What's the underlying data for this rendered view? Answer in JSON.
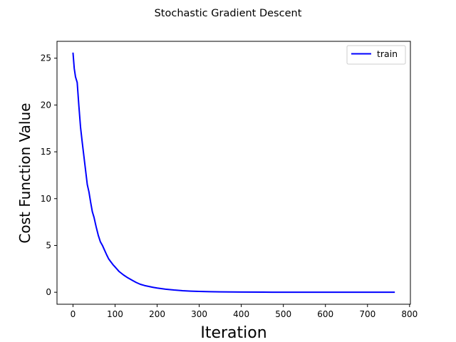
{
  "chart_data": {
    "type": "line",
    "title": "Stochastic Gradient Descent",
    "xlabel": "Iteration",
    "ylabel": "Cost Function Value",
    "xlim": [
      -38,
      802
    ],
    "ylim": [
      -1.28,
      26.8
    ],
    "xticks": [
      0,
      100,
      200,
      300,
      400,
      500,
      600,
      700,
      800
    ],
    "yticks": [
      0,
      5,
      10,
      15,
      20,
      25
    ],
    "grid": false,
    "legend": "top-right",
    "line_color": "#0000ff",
    "series": [
      {
        "name": "train",
        "x": [
          0,
          3,
          6,
          10,
          14,
          18,
          22,
          26,
          30,
          34,
          38,
          42,
          46,
          50,
          55,
          60,
          65,
          70,
          75,
          80,
          85,
          90,
          95,
          100,
          110,
          120,
          130,
          140,
          150,
          160,
          170,
          180,
          190,
          200,
          220,
          240,
          260,
          280,
          300,
          325,
          350,
          375,
          400,
          450,
          500,
          550,
          600,
          650,
          700,
          765
        ],
        "y": [
          25.6,
          23.9,
          23.0,
          22.4,
          19.9,
          17.6,
          16.0,
          14.5,
          13.0,
          11.5,
          10.7,
          9.6,
          8.6,
          8.0,
          7.0,
          6.1,
          5.4,
          5.0,
          4.5,
          4.0,
          3.55,
          3.25,
          2.95,
          2.7,
          2.2,
          1.85,
          1.55,
          1.3,
          1.05,
          0.85,
          0.72,
          0.62,
          0.53,
          0.45,
          0.33,
          0.24,
          0.17,
          0.12,
          0.09,
          0.06,
          0.04,
          0.03,
          0.02,
          0.01,
          0.0,
          0.0,
          0.0,
          0.0,
          0.0,
          0.0
        ]
      }
    ]
  }
}
